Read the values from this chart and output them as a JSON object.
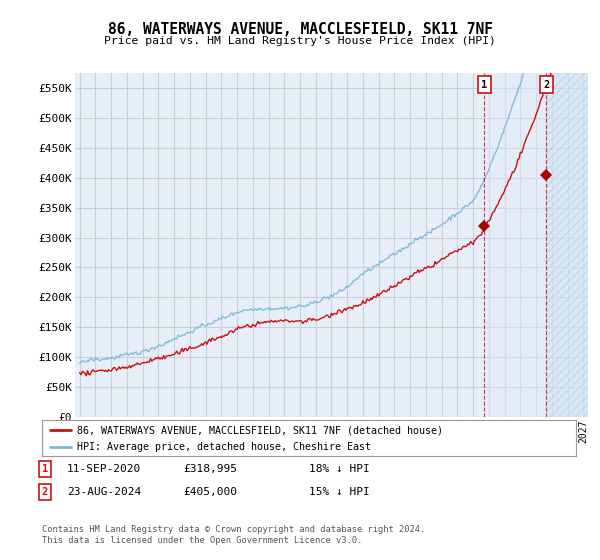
{
  "title": "86, WATERWAYS AVENUE, MACCLESFIELD, SK11 7NF",
  "subtitle": "Price paid vs. HM Land Registry's House Price Index (HPI)",
  "legend_line1": "86, WATERWAYS AVENUE, MACCLESFIELD, SK11 7NF (detached house)",
  "legend_line2": "HPI: Average price, detached house, Cheshire East",
  "transaction1_date": "11-SEP-2020",
  "transaction1_price": "£318,995",
  "transaction1_hpi": "18% ↓ HPI",
  "transaction2_date": "23-AUG-2024",
  "transaction2_price": "£405,000",
  "transaction2_hpi": "15% ↓ HPI",
  "footer": "Contains HM Land Registry data © Crown copyright and database right 2024.\nThis data is licensed under the Open Government Licence v3.0.",
  "hpi_color": "#7ab8d9",
  "price_color": "#cc1111",
  "marker_color": "#aa0000",
  "background_color": "#ffffff",
  "plot_bg_color": "#e8eef8",
  "grid_color": "#c8d0dc",
  "shade_color": "#d0e4f4",
  "ylim": [
    0,
    575000
  ],
  "yticks": [
    0,
    50000,
    100000,
    150000,
    200000,
    250000,
    300000,
    350000,
    400000,
    450000,
    500000,
    550000
  ],
  "year_start": 1995,
  "year_end": 2027,
  "transaction1_year": 2020.72,
  "transaction1_price_val": 318995,
  "transaction2_year": 2024.65,
  "transaction2_price_val": 405000
}
